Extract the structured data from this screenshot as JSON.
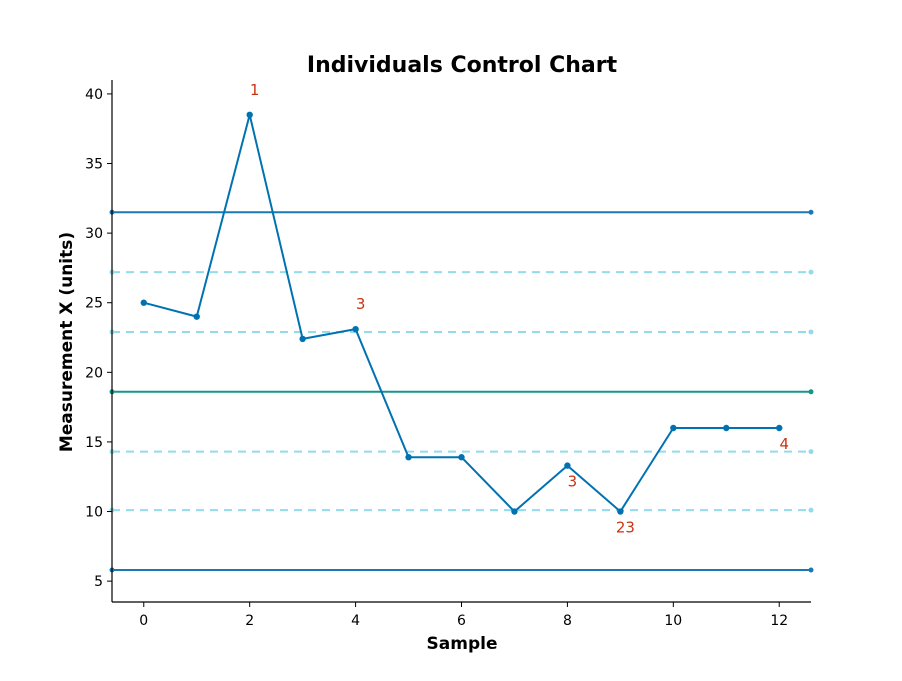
{
  "chart_data": {
    "type": "line",
    "title": "Individuals Control Chart",
    "xlabel": "Sample",
    "ylabel": "Measurement X (units)",
    "xlim": [
      -0.6,
      12.6
    ],
    "ylim": [
      3.5,
      41.0
    ],
    "x_ticks": [
      0,
      2,
      4,
      6,
      8,
      10,
      12
    ],
    "y_ticks": [
      5,
      10,
      15,
      20,
      25,
      30,
      35,
      40
    ],
    "grid": false,
    "series": [
      {
        "x": [
          0,
          1,
          2,
          3,
          4,
          5,
          6,
          7,
          8,
          9,
          10,
          11,
          12
        ],
        "values": [
          25.0,
          24.0,
          38.5,
          22.4,
          23.1,
          13.9,
          13.9,
          10.0,
          13.3,
          10.0,
          16.0,
          16.0,
          16.0
        ]
      }
    ],
    "reference_lines": [
      {
        "kind": "control-limit",
        "y": 31.5,
        "style": "solid",
        "color": "#1a78b5"
      },
      {
        "kind": "zone-line",
        "y": 27.2,
        "style": "dashed",
        "color": "#93dbec"
      },
      {
        "kind": "zone-line",
        "y": 22.9,
        "style": "dashed",
        "color": "#93dbec"
      },
      {
        "kind": "center-line",
        "y": 18.6,
        "style": "solid",
        "color": "#16968a"
      },
      {
        "kind": "zone-line",
        "y": 14.3,
        "style": "dashed",
        "color": "#93dbec"
      },
      {
        "kind": "zone-line",
        "y": 10.1,
        "style": "dashed",
        "color": "#93dbec"
      },
      {
        "kind": "control-limit",
        "y": 5.8,
        "style": "solid",
        "color": "#1a78b5"
      }
    ],
    "annotations": [
      {
        "text": "1",
        "x": 2,
        "y": 38.5,
        "position": "above"
      },
      {
        "text": "3",
        "x": 4,
        "y": 23.1,
        "position": "above"
      },
      {
        "text": "3",
        "x": 8,
        "y": 13.3,
        "position": "below"
      },
      {
        "text": "23",
        "x": 9,
        "y": 10.0,
        "position": "below"
      },
      {
        "text": "4",
        "x": 12,
        "y": 16.0,
        "position": "below"
      }
    ],
    "colors": {
      "series": "#0072b2",
      "control_limit": "#1a78b5",
      "center_line": "#16968a",
      "zone_line": "#93dbec",
      "annotation": "#cc3311",
      "axis": "#000000"
    }
  }
}
